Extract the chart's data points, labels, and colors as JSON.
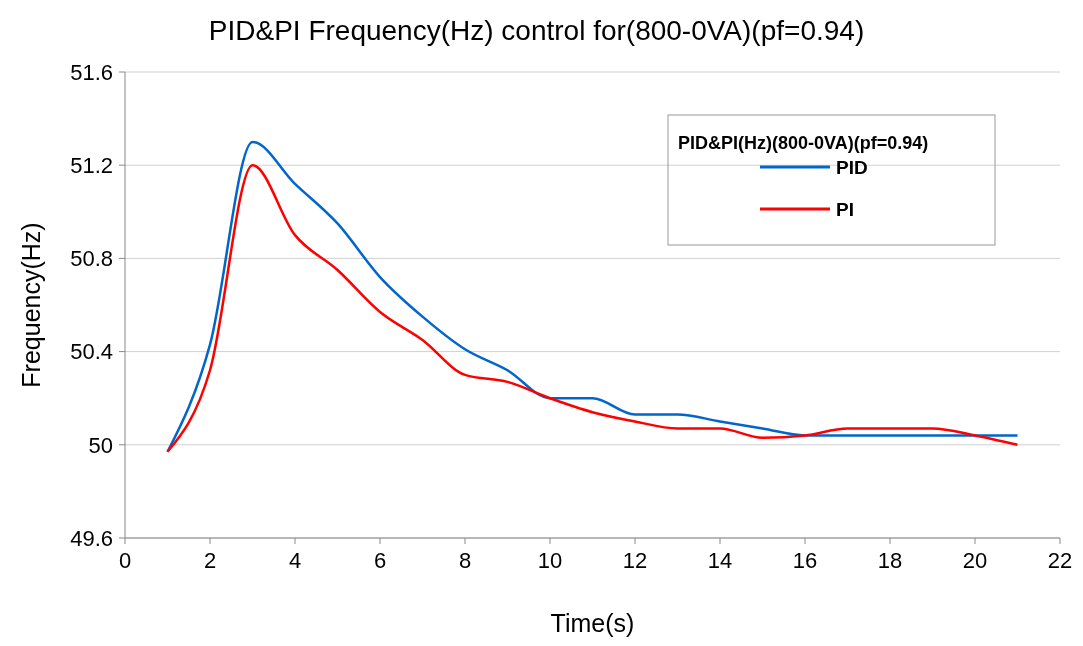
{
  "chart_data": {
    "type": "line",
    "title": "PID&PI Frequency(Hz) control for(800-0VA)(pf=0.94)",
    "xlabel": "Time(s)",
    "ylabel": "Frequency(Hz)",
    "legend_title": "PID&PI(Hz)(800-0VA)(pf=0.94)",
    "legend": "top right",
    "grid": "y",
    "marker": "none",
    "line_style": "solid",
    "x": [
      1,
      2,
      3,
      4,
      5,
      6,
      7,
      8,
      9,
      10,
      11,
      12,
      13,
      14,
      15,
      16,
      17,
      18,
      19,
      20,
      21
    ],
    "series": [
      {
        "name": "PID",
        "color": "#0066cc",
        "values": [
          49.97,
          50.43,
          51.3,
          51.12,
          50.95,
          50.72,
          50.55,
          50.41,
          50.32,
          50.2,
          50.2,
          50.13,
          50.13,
          50.1,
          50.07,
          50.04,
          50.04,
          50.04,
          50.04,
          50.04,
          50.04
        ]
      },
      {
        "name": "PI",
        "color": "#ff0000",
        "values": [
          49.97,
          50.32,
          51.2,
          50.9,
          50.75,
          50.57,
          50.45,
          50.3,
          50.27,
          50.2,
          50.14,
          50.1,
          50.07,
          50.07,
          50.03,
          50.04,
          50.07,
          50.07,
          50.07,
          50.04,
          50.0
        ]
      }
    ],
    "xlim": [
      0,
      22
    ],
    "xticks": [
      0,
      2,
      4,
      6,
      8,
      10,
      12,
      14,
      16,
      18,
      20,
      22
    ],
    "ylim": [
      49.6,
      51.6
    ],
    "yticks": [
      49.6,
      50,
      50.4,
      50.8,
      51.2,
      51.6
    ]
  }
}
